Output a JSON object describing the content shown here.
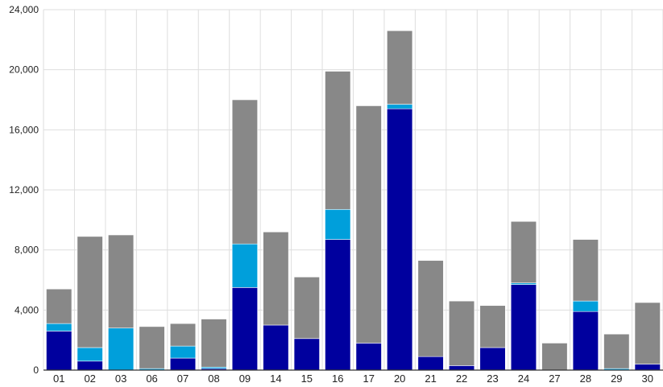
{
  "chart_data": {
    "type": "bar",
    "stacked": true,
    "categories": [
      "01",
      "02",
      "03",
      "06",
      "07",
      "08",
      "09",
      "14",
      "15",
      "16",
      "17",
      "20",
      "21",
      "22",
      "23",
      "24",
      "27",
      "28",
      "29",
      "30"
    ],
    "series": [
      {
        "color": "#00009e",
        "values": [
          2600,
          600,
          0,
          0,
          800,
          100,
          5500,
          3000,
          2100,
          8700,
          1800,
          17400,
          900,
          300,
          1500,
          5700,
          0,
          3900,
          0,
          400
        ]
      },
      {
        "color": "#009fdb",
        "values": [
          500,
          900,
          2800,
          100,
          800,
          100,
          2900,
          0,
          0,
          2000,
          0,
          300,
          0,
          0,
          0,
          100,
          0,
          700,
          100,
          0
        ]
      },
      {
        "color": "#888888",
        "values": [
          2300,
          7400,
          6200,
          2800,
          1500,
          3200,
          9600,
          6200,
          4100,
          9200,
          15800,
          4900,
          6400,
          4300,
          2800,
          4100,
          1800,
          4100,
          2300,
          4100
        ]
      }
    ],
    "ylim": [
      0,
      24000
    ],
    "yticks": [
      0,
      4000,
      8000,
      12000,
      16000,
      20000,
      24000
    ],
    "ytick_labels": [
      "0",
      "4,000",
      "8,000",
      "12,000",
      "16,000",
      "20,000",
      "24,000"
    ],
    "grid": true,
    "legend": "none",
    "title": "",
    "xlabel": "",
    "ylabel": ""
  }
}
